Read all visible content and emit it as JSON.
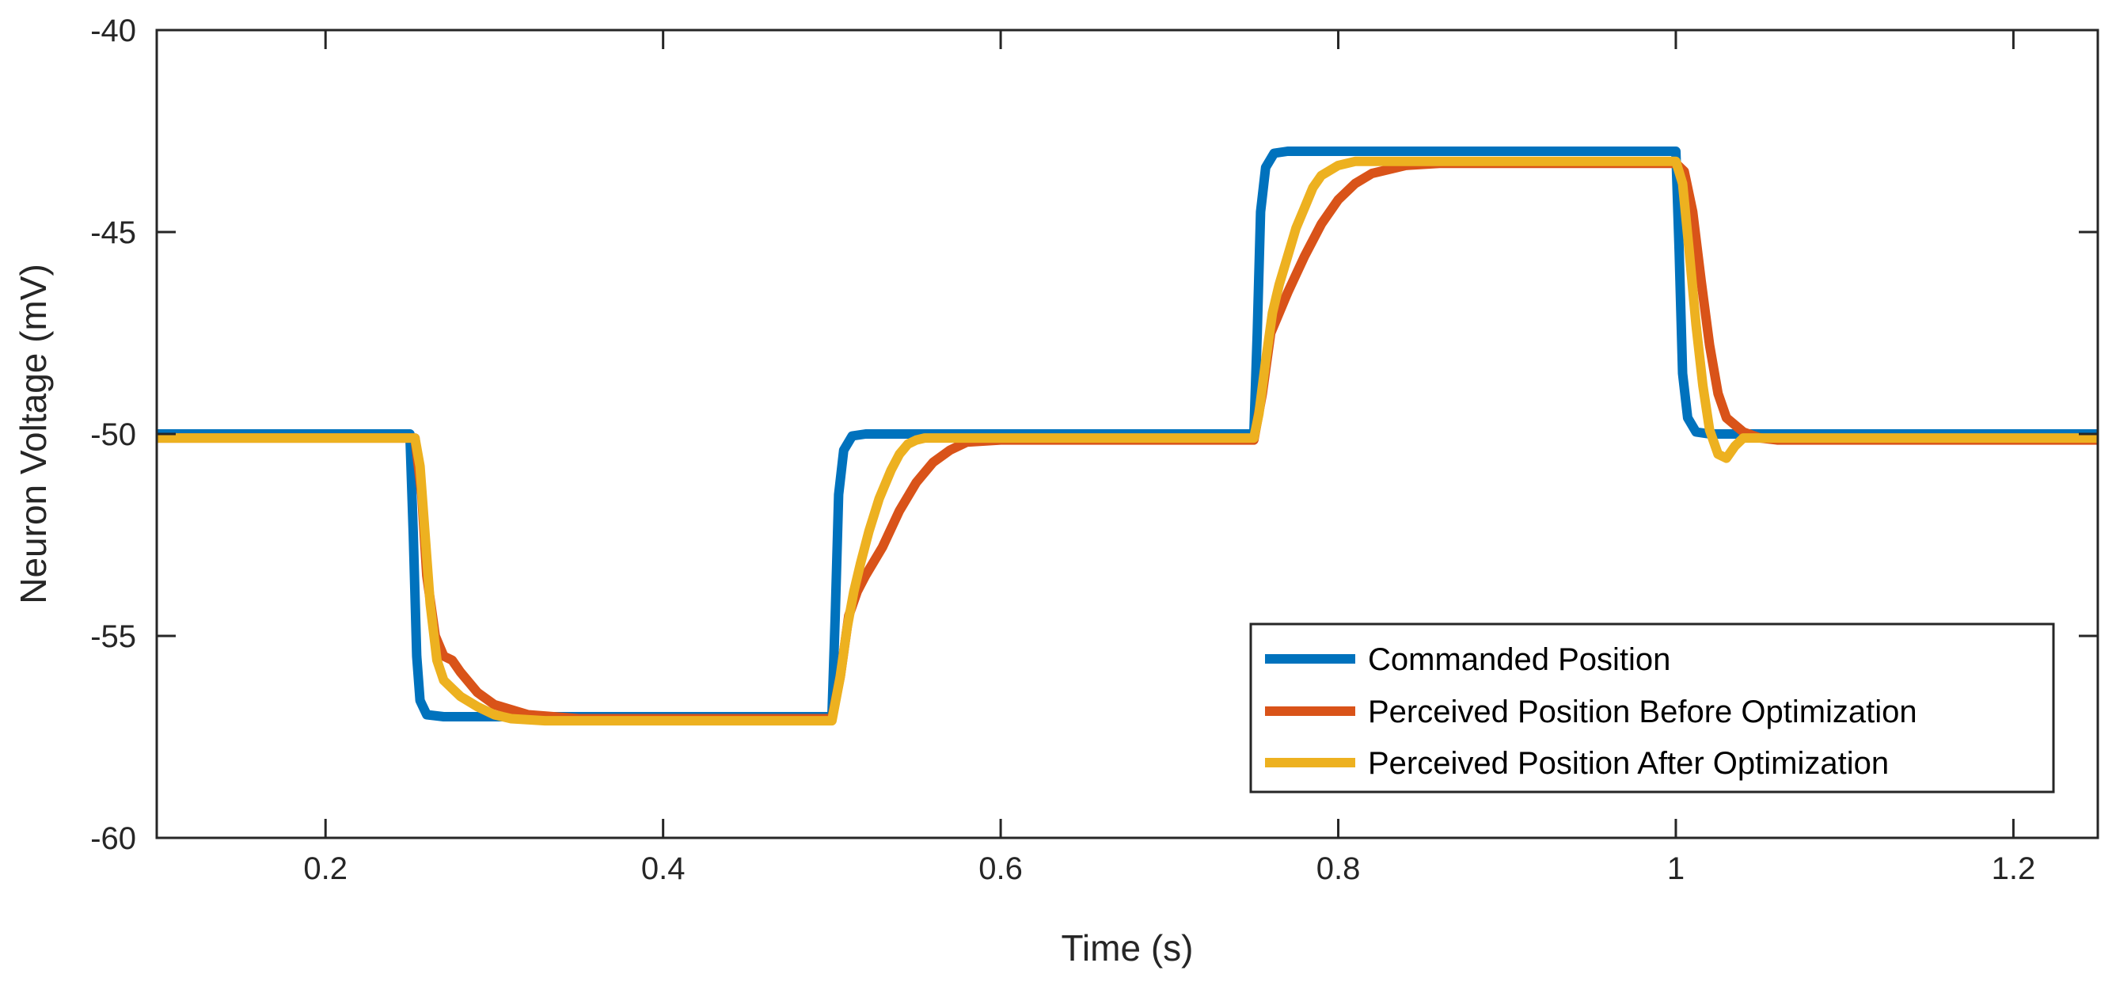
{
  "chart_data": {
    "type": "line",
    "title": "",
    "xlabel": "Time (s)",
    "ylabel": "Neuron Voltage (mV)",
    "xlim": [
      0.1,
      1.25
    ],
    "ylim": [
      -60,
      -40
    ],
    "xticks": [
      0.2,
      0.4,
      0.6,
      0.8,
      1.0,
      1.2
    ],
    "xtick_labels": [
      "0.2",
      "0.4",
      "0.6",
      "0.8",
      "1",
      "1.2"
    ],
    "yticks": [
      -60,
      -55,
      -50,
      -45,
      -40
    ],
    "ytick_labels": [
      "-60",
      "-55",
      "-50",
      "-45",
      "-40"
    ],
    "grid": false,
    "legend_position": "bottom-right",
    "series": [
      {
        "name": "Commanded Position",
        "color": "#0072BD",
        "x": [
          0.1,
          0.25,
          0.252,
          0.254,
          0.256,
          0.26,
          0.27,
          0.5,
          0.502,
          0.504,
          0.507,
          0.512,
          0.52,
          0.75,
          0.752,
          0.754,
          0.757,
          0.762,
          0.77,
          1.0,
          1.002,
          1.004,
          1.007,
          1.012,
          1.02,
          1.25
        ],
        "y": [
          -50,
          -50,
          -52.5,
          -55.5,
          -56.6,
          -56.95,
          -57,
          -57,
          -54.5,
          -51.5,
          -50.4,
          -50.05,
          -50,
          -50,
          -47.5,
          -44.5,
          -43.4,
          -43.05,
          -43,
          -43,
          -45.5,
          -48.5,
          -49.6,
          -49.95,
          -50,
          -50
        ]
      },
      {
        "name": "Perceived Position Before Optimization",
        "color": "#D95319",
        "x": [
          0.1,
          0.253,
          0.257,
          0.26,
          0.265,
          0.27,
          0.275,
          0.28,
          0.29,
          0.3,
          0.32,
          0.35,
          0.4,
          0.5,
          0.505,
          0.51,
          0.515,
          0.52,
          0.53,
          0.54,
          0.55,
          0.56,
          0.57,
          0.58,
          0.6,
          0.75,
          0.755,
          0.76,
          0.765,
          0.77,
          0.78,
          0.79,
          0.8,
          0.81,
          0.82,
          0.84,
          0.86,
          0.9,
          1.0,
          1.005,
          1.01,
          1.015,
          1.02,
          1.025,
          1.03,
          1.04,
          1.05,
          1.06,
          1.25
        ],
        "y": [
          -50.1,
          -50.1,
          -51.5,
          -53.5,
          -55,
          -55.5,
          -55.6,
          -55.9,
          -56.4,
          -56.7,
          -56.95,
          -57.05,
          -57.05,
          -57.05,
          -56,
          -54.5,
          -53.9,
          -53.5,
          -52.8,
          -51.9,
          -51.2,
          -50.7,
          -50.4,
          -50.2,
          -50.15,
          -50.15,
          -49,
          -47.5,
          -47,
          -46.5,
          -45.6,
          -44.8,
          -44.2,
          -43.8,
          -43.55,
          -43.35,
          -43.3,
          -43.3,
          -43.3,
          -43.5,
          -44.5,
          -46.2,
          -47.8,
          -49,
          -49.6,
          -49.95,
          -50.1,
          -50.15,
          -50.15
        ]
      },
      {
        "name": "Perceived Position After Optimization",
        "color": "#EDB120",
        "x": [
          0.1,
          0.253,
          0.256,
          0.259,
          0.262,
          0.266,
          0.27,
          0.275,
          0.28,
          0.29,
          0.3,
          0.31,
          0.33,
          0.4,
          0.5,
          0.505,
          0.509,
          0.513,
          0.517,
          0.522,
          0.528,
          0.535,
          0.54,
          0.545,
          0.55,
          0.555,
          0.56,
          0.6,
          0.75,
          0.753,
          0.757,
          0.761,
          0.765,
          0.77,
          0.775,
          0.78,
          0.785,
          0.79,
          0.8,
          0.81,
          0.83,
          0.9,
          1.0,
          1.004,
          1.008,
          1.012,
          1.016,
          1.02,
          1.025,
          1.03,
          1.035,
          1.04,
          1.05,
          1.06,
          1.25
        ],
        "y": [
          -50.1,
          -50.1,
          -50.8,
          -52.5,
          -54.2,
          -55.6,
          -56.1,
          -56.3,
          -56.5,
          -56.75,
          -56.95,
          -57.05,
          -57.1,
          -57.1,
          -57.1,
          -56,
          -54.8,
          -53.9,
          -53.2,
          -52.4,
          -51.6,
          -50.9,
          -50.5,
          -50.25,
          -50.15,
          -50.1,
          -50.1,
          -50.1,
          -50.1,
          -49.5,
          -48.2,
          -47,
          -46.3,
          -45.6,
          -44.9,
          -44.4,
          -43.9,
          -43.6,
          -43.35,
          -43.25,
          -43.25,
          -43.25,
          -43.25,
          -43.8,
          -45.5,
          -47.3,
          -48.8,
          -49.9,
          -50.5,
          -50.6,
          -50.3,
          -50.1,
          -50.1,
          -50.1,
          -50.1
        ]
      }
    ]
  }
}
